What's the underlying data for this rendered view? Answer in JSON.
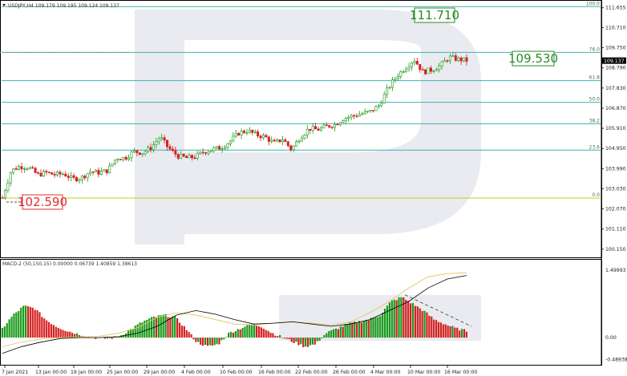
{
  "header": {
    "symbol_label": "USDJPY,H4  109.179 109.195 109.124 109.137"
  },
  "macd_header": {
    "label": "MACD-2 (50,150,15) 0.00000 0.06739 1.40859 1.38613"
  },
  "price_axis": {
    "ticks": [
      "111.655",
      "110.710",
      "109.750",
      "108.790",
      "107.830",
      "106.870",
      "105.910",
      "104.950",
      "103.990",
      "103.030",
      "102.070",
      "101.110",
      "100.150"
    ],
    "current_price": "109.137"
  },
  "macd_axis": {
    "ticks": [
      "1.49993",
      "0.00",
      "-0.48938"
    ]
  },
  "time_axis": {
    "ticks": [
      "7 Jan 2021",
      "13 Jan 00:00",
      "19 Jan 00:00",
      "25 Jan 00:00",
      "29 Jan 00:00",
      "4 Feb 00:00",
      "10 Feb 00:00",
      "16 Feb 00:00",
      "22 Feb 00:00",
      "26 Feb 00:00",
      "4 Mar 00:00",
      "10 Mar 00:00",
      "16 Mar 00:00"
    ]
  },
  "fib_levels": [
    {
      "label": "100.0"
    },
    {
      "label": "76.0"
    },
    {
      "label": "61.8"
    },
    {
      "label": "50.0"
    },
    {
      "label": "38.2"
    },
    {
      "label": "23.6"
    },
    {
      "label": "0.0"
    }
  ],
  "annotations": {
    "high_target": "111.710",
    "mid_target": "109.530",
    "low_value": "102.590"
  },
  "colors": {
    "bull": "#1a9a1a",
    "bear": "#d42020",
    "fib_line": "#40b0b0",
    "zero_line": "#c8c820",
    "macd_signal": "#e8c870",
    "macd_main": "#000000",
    "target_green": "#2a8a2a",
    "target_red": "#e03030"
  },
  "chart_data": {
    "type": "candlestick",
    "symbol": "USDJPY",
    "timeframe": "H4",
    "ylim": [
      99.8,
      111.95
    ],
    "fib_prices": [
      111.71,
      109.53,
      108.18,
      107.15,
      106.13,
      104.87,
      102.59
    ],
    "close_path": [
      102.6,
      103.9,
      104.1,
      104.05,
      103.7,
      103.8,
      103.7,
      103.75,
      103.5,
      103.55,
      103.85,
      103.8,
      103.9,
      104.5,
      104.5,
      104.8,
      104.75,
      105.0,
      105.5,
      104.95,
      104.6,
      104.5,
      104.55,
      104.8,
      104.9,
      105.0,
      105.3,
      105.7,
      105.8,
      105.6,
      105.5,
      105.2,
      105.4,
      104.9,
      105.5,
      105.9,
      105.85,
      106.0,
      106.1,
      106.4,
      106.5,
      106.6,
      106.7,
      107.0,
      107.8,
      108.4,
      108.8,
      109.2,
      108.6,
      108.7,
      108.9,
      109.3,
      109.2,
      109.15
    ],
    "macd_hist": [
      0.2,
      0.5,
      0.7,
      0.65,
      0.4,
      0.25,
      0.15,
      0.08,
      0.02,
      -0.02,
      -0.02,
      0.05,
      0.2,
      0.35,
      0.45,
      0.5,
      0.45,
      0.2,
      -0.1,
      -0.2,
      -0.15,
      0.1,
      0.2,
      0.3,
      0.25,
      0.1,
      0.0,
      -0.1,
      -0.2,
      -0.15,
      0.1,
      0.2,
      0.3,
      0.35,
      0.4,
      0.5,
      0.8,
      0.9,
      0.75,
      0.6,
      0.4,
      0.3,
      0.2,
      0.15
    ],
    "macd_main": [
      -0.35,
      -0.2,
      -0.1,
      -0.02,
      0.0,
      0.0,
      0.02,
      0.1,
      0.25,
      0.5,
      0.6,
      0.52,
      0.4,
      0.3,
      0.32,
      0.35,
      0.3,
      0.25,
      0.3,
      0.4,
      0.6,
      0.8,
      1.1,
      1.3,
      1.38
    ],
    "macd_signal": [
      -0.2,
      -0.1,
      -0.03,
      0.0,
      0.01,
      0.03,
      0.1,
      0.22,
      0.45,
      0.55,
      0.5,
      0.4,
      0.3,
      0.28,
      0.32,
      0.35,
      0.32,
      0.28,
      0.35,
      0.55,
      0.8,
      1.1,
      1.35,
      1.42,
      1.44
    ]
  }
}
